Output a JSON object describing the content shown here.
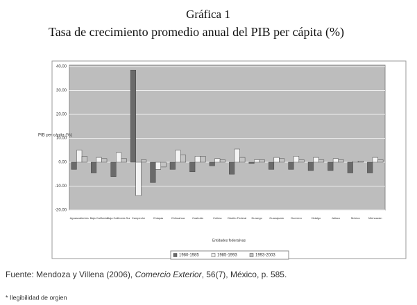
{
  "chart_data": {
    "type": "bar",
    "heading": "Gráfica 1",
    "title": "Tasa de crecimiento promedio anual del PIB per cápita (%)",
    "y_label": "PIB per cápita (%)",
    "x_label": "Entidades federativas",
    "categories": [
      "Aguascalientes",
      "Baja California",
      "Baja California Sur",
      "Campeche",
      "Chiapas",
      "Chihuahua",
      "Coahuila",
      "Colima",
      "Distrito Federal",
      "Durango",
      "Guanajuato",
      "Guerrero",
      "Hidalgo",
      "Jalisco",
      "México",
      "Michoacán"
    ],
    "series": [
      {
        "name": "1980-1985",
        "color": "#6a6a6a",
        "values": [
          -3,
          -4.5,
          -6,
          38.5,
          -8.5,
          -3,
          -4,
          -1.5,
          -5,
          -0.5,
          -3,
          -3,
          -3.5,
          -3.5,
          -4.5,
          -4.5
        ]
      },
      {
        "name": "1985-1993",
        "color": "#f4f4f4",
        "values": [
          5,
          2,
          4,
          -14,
          -3,
          5,
          2.5,
          1.5,
          5.5,
          1,
          2,
          2.5,
          2,
          1.5,
          0.5,
          2
        ]
      },
      {
        "name": "1993-2003",
        "color": "#c4c4c4",
        "values": [
          2.5,
          1.5,
          1.5,
          1,
          -2,
          3,
          2.5,
          1,
          2,
          1,
          1.5,
          1,
          1,
          1,
          0.5,
          1
        ]
      }
    ],
    "ylim": [
      -20,
      40
    ],
    "yticks": [
      {
        "value": -20,
        "label": "-20.00"
      },
      {
        "value": -10,
        "label": "-10.00"
      },
      {
        "value": 0,
        "label": "0.00"
      },
      {
        "value": 10,
        "label": "10.00"
      },
      {
        "value": 20,
        "label": "20.00"
      },
      {
        "value": 30,
        "label": "30.00"
      },
      {
        "value": 40,
        "label": "40.00"
      }
    ],
    "grid": true,
    "legend": "bottom",
    "source": [
      "Fuente: Mendoza y Villena (2006), ",
      "Comercio Exterior",
      ", 56(7), México, p. 585."
    ],
    "note": "* Ilegibilidad de orgien"
  }
}
